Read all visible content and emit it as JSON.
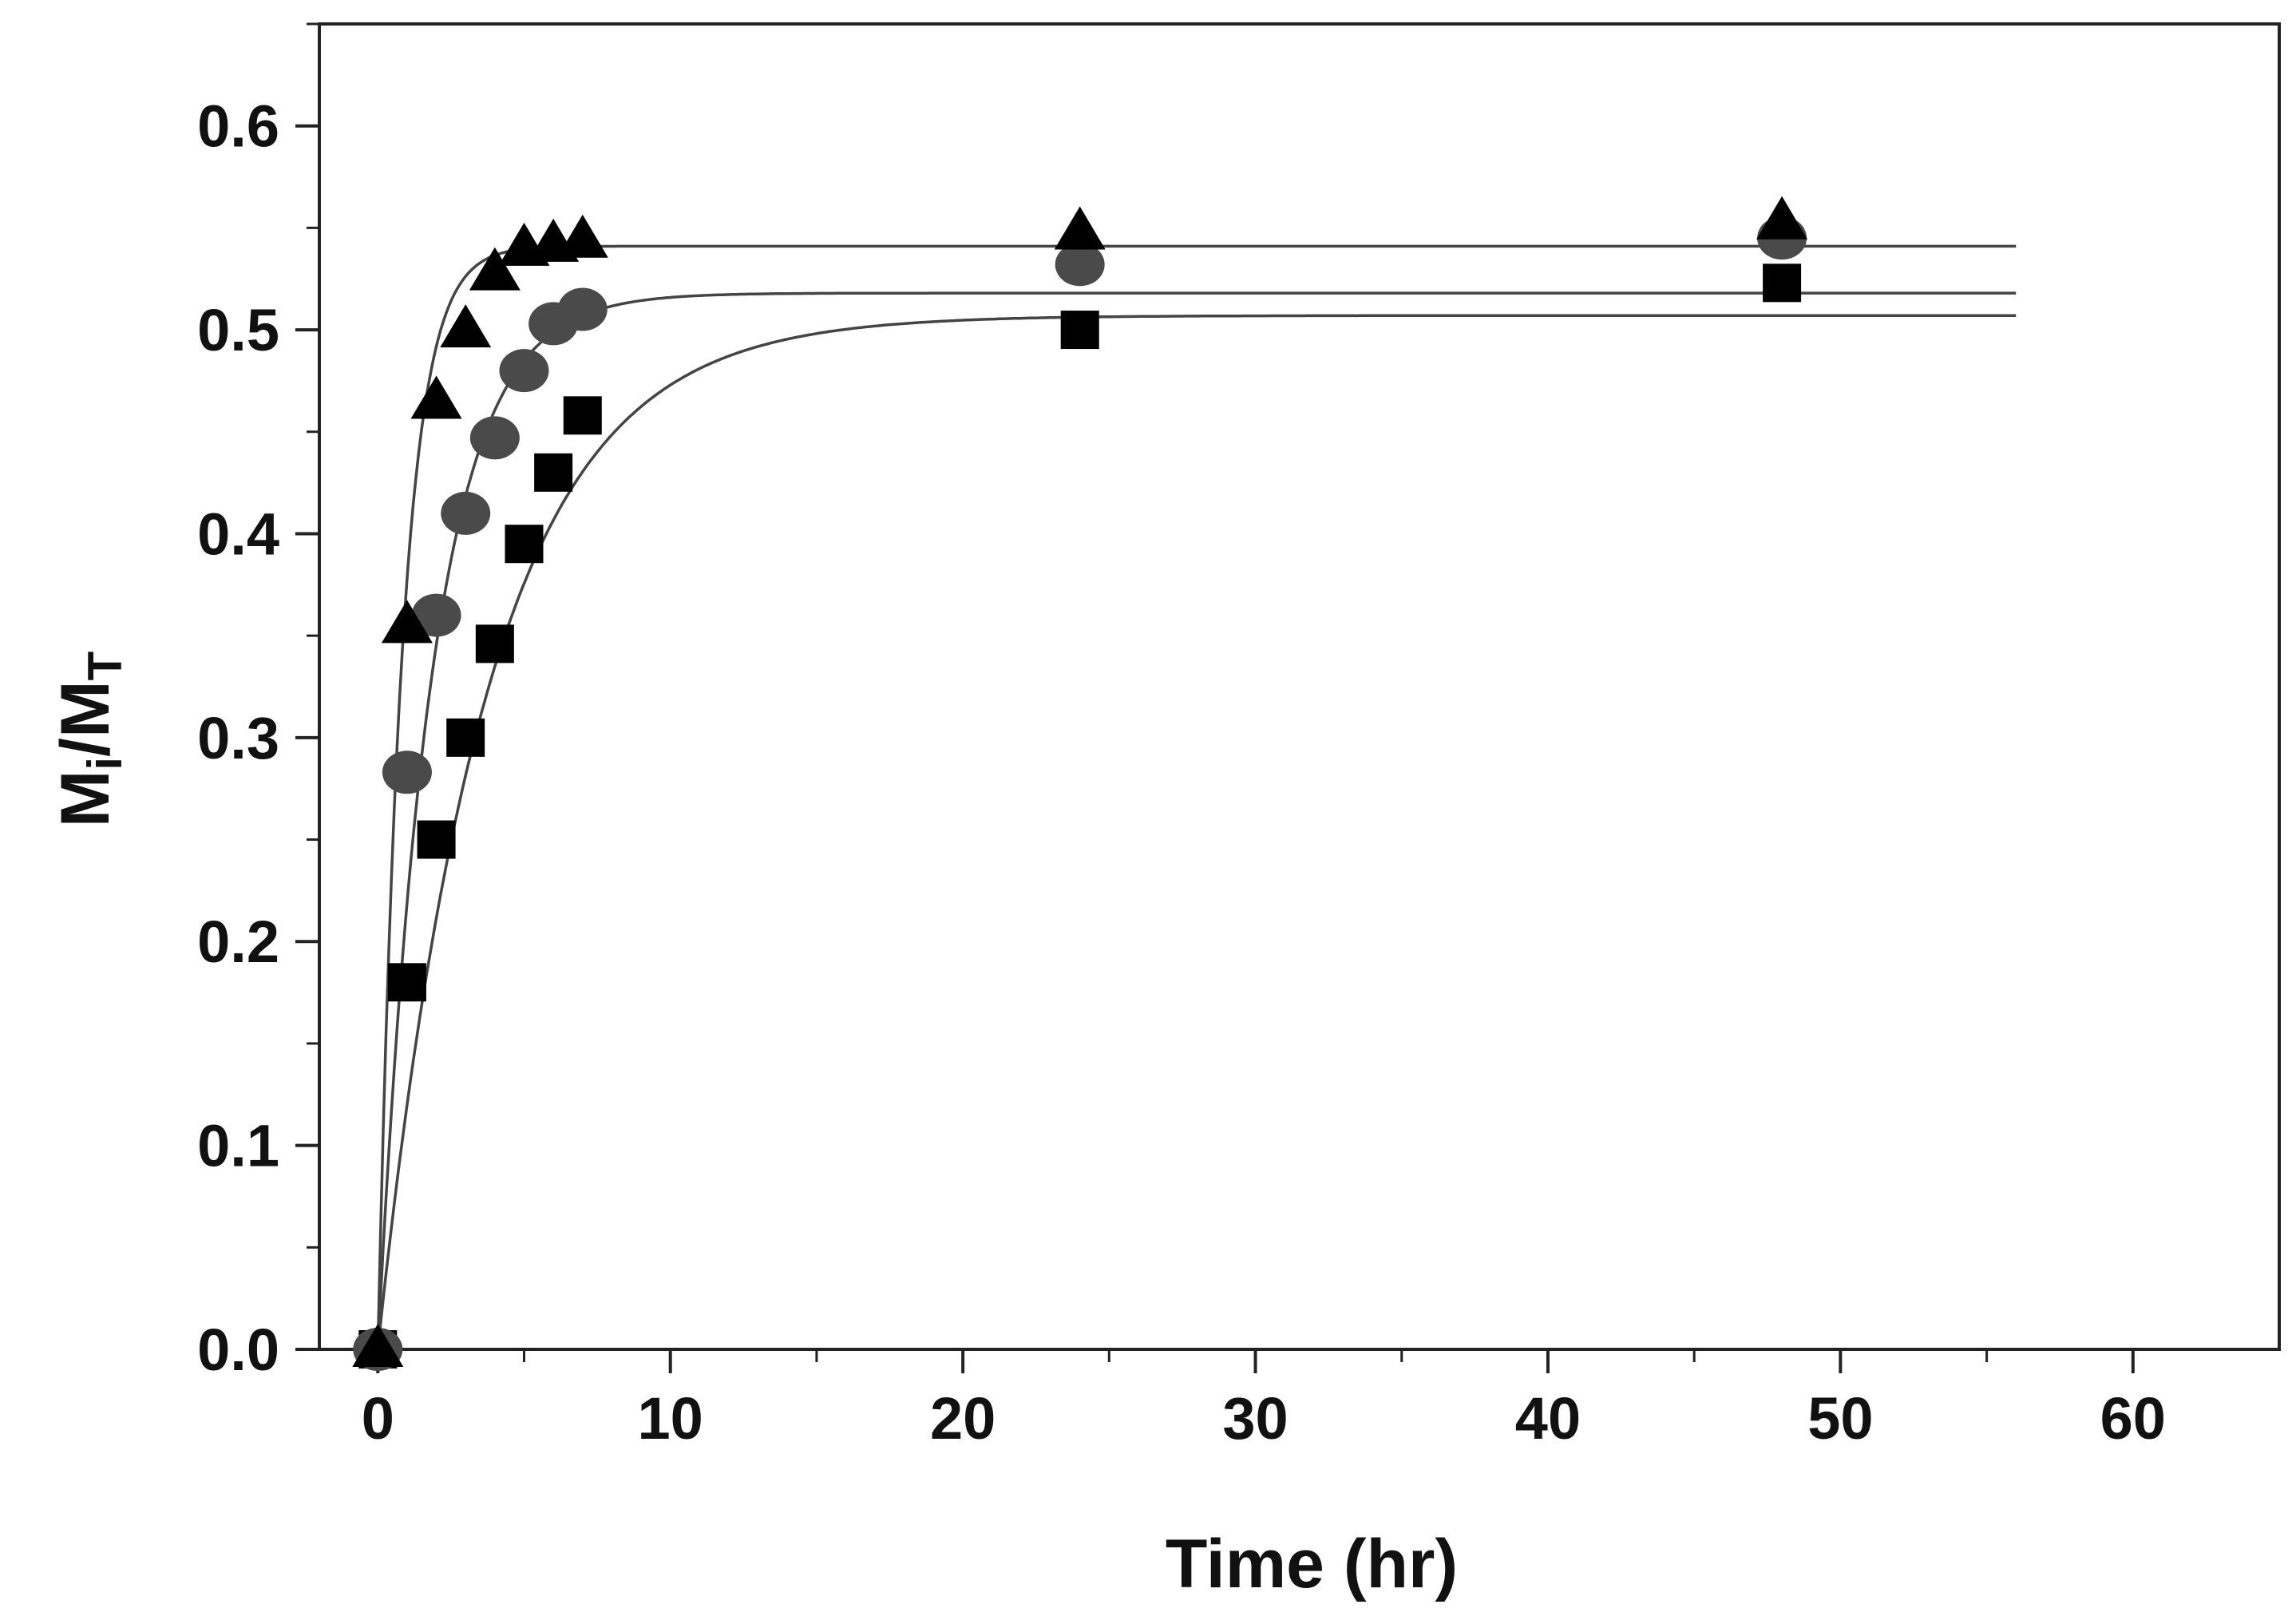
{
  "chart_data": {
    "type": "scatter",
    "title": "",
    "xlabel": "Time (hr)",
    "ylabel": {
      "main": "M",
      "sub1": "i",
      "mid": "/M",
      "sub2": "T"
    },
    "xlim": [
      -2,
      65
    ],
    "ylim": [
      0,
      0.65
    ],
    "grid": false,
    "legend": "none",
    "x_ticks": [
      0,
      10,
      20,
      30,
      40,
      50,
      60
    ],
    "x_tick_labels": [
      "0",
      "10",
      "20",
      "30",
      "40",
      "50",
      "60"
    ],
    "y_ticks": [
      0.0,
      0.1,
      0.2,
      0.3,
      0.4,
      0.5,
      0.6
    ],
    "y_tick_labels": [
      "0.0",
      "0.1",
      "0.2",
      "0.3",
      "0.4",
      "0.5",
      "0.6"
    ],
    "series": [
      {
        "name": "square",
        "marker": "square",
        "color": "#000000",
        "x": [
          0,
          1,
          2,
          3,
          4,
          5,
          6,
          7,
          24,
          48
        ],
        "y": [
          0.0,
          0.18,
          0.25,
          0.3,
          0.346,
          0.395,
          0.43,
          0.458,
          0.5,
          0.523
        ],
        "fit": {
          "plateau": 0.507,
          "rate": 0.27,
          "x_end": 56
        }
      },
      {
        "name": "circle",
        "marker": "circle",
        "color": "#4a4a4a",
        "x": [
          0,
          1,
          2,
          3,
          4,
          5,
          6,
          7,
          24,
          48
        ],
        "y": [
          0.0,
          0.283,
          0.36,
          0.41,
          0.447,
          0.48,
          0.503,
          0.51,
          0.532,
          0.545
        ],
        "fit": {
          "plateau": 0.518,
          "rate": 0.55,
          "x_end": 56
        }
      },
      {
        "name": "triangle",
        "marker": "triangle",
        "color": "#000000",
        "x": [
          0,
          1,
          2,
          3,
          4,
          5,
          6,
          7,
          24,
          48
        ],
        "y": [
          0.0,
          0.355,
          0.465,
          0.5,
          0.528,
          0.54,
          0.542,
          0.544,
          0.548,
          0.553
        ],
        "fit": {
          "plateau": 0.541,
          "rate": 1.2,
          "x_end": 56
        }
      }
    ]
  }
}
